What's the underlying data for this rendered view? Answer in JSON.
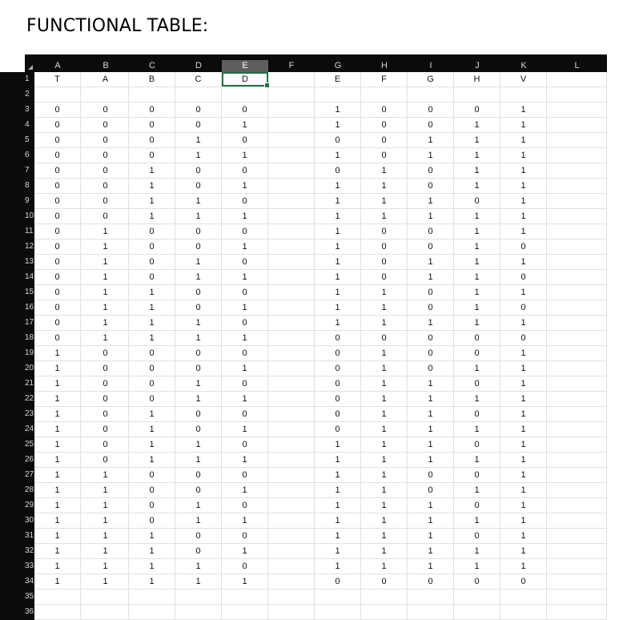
{
  "title": "FUNCTIONAL TABLE:",
  "column_headers": [
    "A",
    "B",
    "C",
    "D",
    "E",
    "F",
    "G",
    "H",
    "I",
    "J",
    "K",
    "L"
  ],
  "selected_column": "E",
  "row_numbers": [
    "1",
    "2",
    "3",
    "4",
    "5",
    "6",
    "7",
    "8",
    "9",
    "10",
    "11",
    "12",
    "13",
    "14",
    "15",
    "16",
    "17",
    "18",
    "19",
    "20",
    "21",
    "22",
    "23",
    "24",
    "25",
    "26",
    "27",
    "28",
    "29",
    "30",
    "31",
    "32",
    "33",
    "34",
    "35",
    "36"
  ],
  "header_row": [
    "T",
    "A",
    "B",
    "C",
    "D",
    "",
    "E",
    "F",
    "G",
    "H",
    "V",
    ""
  ],
  "table_rows": [
    [
      "0",
      "0",
      "0",
      "0",
      "0",
      "",
      "1",
      "0",
      "0",
      "0",
      "1",
      ""
    ],
    [
      "0",
      "0",
      "0",
      "0",
      "1",
      "",
      "1",
      "0",
      "0",
      "1",
      "1",
      ""
    ],
    [
      "0",
      "0",
      "0",
      "1",
      "0",
      "",
      "0",
      "0",
      "1",
      "1",
      "1",
      ""
    ],
    [
      "0",
      "0",
      "0",
      "1",
      "1",
      "",
      "1",
      "0",
      "1",
      "1",
      "1",
      ""
    ],
    [
      "0",
      "0",
      "1",
      "0",
      "0",
      "",
      "0",
      "1",
      "0",
      "1",
      "1",
      ""
    ],
    [
      "0",
      "0",
      "1",
      "0",
      "1",
      "",
      "1",
      "1",
      "0",
      "1",
      "1",
      ""
    ],
    [
      "0",
      "0",
      "1",
      "1",
      "0",
      "",
      "1",
      "1",
      "1",
      "0",
      "1",
      ""
    ],
    [
      "0",
      "0",
      "1",
      "1",
      "1",
      "",
      "1",
      "1",
      "1",
      "1",
      "1",
      ""
    ],
    [
      "0",
      "1",
      "0",
      "0",
      "0",
      "",
      "1",
      "0",
      "0",
      "1",
      "1",
      ""
    ],
    [
      "0",
      "1",
      "0",
      "0",
      "1",
      "",
      "1",
      "0",
      "0",
      "1",
      "0",
      ""
    ],
    [
      "0",
      "1",
      "0",
      "1",
      "0",
      "",
      "1",
      "0",
      "1",
      "1",
      "1",
      ""
    ],
    [
      "0",
      "1",
      "0",
      "1",
      "1",
      "",
      "1",
      "0",
      "1",
      "1",
      "0",
      ""
    ],
    [
      "0",
      "1",
      "1",
      "0",
      "0",
      "",
      "1",
      "1",
      "0",
      "1",
      "1",
      ""
    ],
    [
      "0",
      "1",
      "1",
      "0",
      "1",
      "",
      "1",
      "1",
      "0",
      "1",
      "0",
      ""
    ],
    [
      "0",
      "1",
      "1",
      "1",
      "0",
      "",
      "1",
      "1",
      "1",
      "1",
      "1",
      ""
    ],
    [
      "0",
      "1",
      "1",
      "1",
      "1",
      "",
      "0",
      "0",
      "0",
      "0",
      "0",
      ""
    ],
    [
      "1",
      "0",
      "0",
      "0",
      "0",
      "",
      "0",
      "1",
      "0",
      "0",
      "1",
      ""
    ],
    [
      "1",
      "0",
      "0",
      "0",
      "1",
      "",
      "0",
      "1",
      "0",
      "1",
      "1",
      ""
    ],
    [
      "1",
      "0",
      "0",
      "1",
      "0",
      "",
      "0",
      "1",
      "1",
      "0",
      "1",
      ""
    ],
    [
      "1",
      "0",
      "0",
      "1",
      "1",
      "",
      "0",
      "1",
      "1",
      "1",
      "1",
      ""
    ],
    [
      "1",
      "0",
      "1",
      "0",
      "0",
      "",
      "0",
      "1",
      "1",
      "0",
      "1",
      ""
    ],
    [
      "1",
      "0",
      "1",
      "0",
      "1",
      "",
      "0",
      "1",
      "1",
      "1",
      "1",
      ""
    ],
    [
      "1",
      "0",
      "1",
      "1",
      "0",
      "",
      "1",
      "1",
      "1",
      "0",
      "1",
      ""
    ],
    [
      "1",
      "0",
      "1",
      "1",
      "1",
      "",
      "1",
      "1",
      "1",
      "1",
      "1",
      ""
    ],
    [
      "1",
      "1",
      "0",
      "0",
      "0",
      "",
      "1",
      "1",
      "0",
      "0",
      "1",
      ""
    ],
    [
      "1",
      "1",
      "0",
      "0",
      "1",
      "",
      "1",
      "1",
      "0",
      "1",
      "1",
      ""
    ],
    [
      "1",
      "1",
      "0",
      "1",
      "0",
      "",
      "1",
      "1",
      "1",
      "0",
      "1",
      ""
    ],
    [
      "1",
      "1",
      "0",
      "1",
      "1",
      "",
      "1",
      "1",
      "1",
      "1",
      "1",
      ""
    ],
    [
      "1",
      "1",
      "1",
      "0",
      "0",
      "",
      "1",
      "1",
      "1",
      "0",
      "1",
      ""
    ],
    [
      "1",
      "1",
      "1",
      "0",
      "1",
      "",
      "1",
      "1",
      "1",
      "1",
      "1",
      ""
    ],
    [
      "1",
      "1",
      "1",
      "1",
      "0",
      "",
      "1",
      "1",
      "1",
      "1",
      "1",
      ""
    ],
    [
      "1",
      "1",
      "1",
      "1",
      "1",
      "",
      "0",
      "0",
      "0",
      "0",
      "0",
      ""
    ]
  ],
  "active_cell": {
    "row": "1",
    "column": "E"
  },
  "colors": {
    "header_bg": "#0b0b0b",
    "selected_header_bg": "#5f5f5f",
    "active_cell_border": "#1e7145",
    "gridline": "#e1e1e1"
  }
}
